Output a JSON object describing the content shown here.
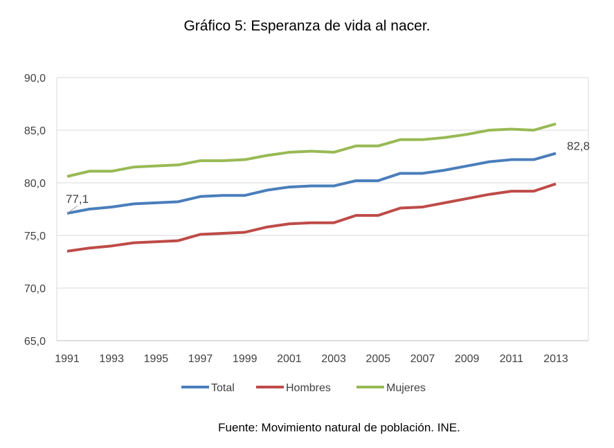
{
  "chart_data": {
    "type": "line",
    "title": "Gráfico 5: Esperanza de vida al nacer.",
    "source": "Fuente: Movimiento natural de población. INE.",
    "x": [
      1991,
      1992,
      1993,
      1994,
      1995,
      1996,
      1997,
      1998,
      1999,
      2000,
      2001,
      2002,
      2003,
      2004,
      2005,
      2006,
      2007,
      2008,
      2009,
      2010,
      2011,
      2012,
      2013
    ],
    "xticks": [
      "1991",
      "1993",
      "1995",
      "1997",
      "1999",
      "2001",
      "2003",
      "2005",
      "2007",
      "2009",
      "2011",
      "2013"
    ],
    "yticks": [
      "65,0",
      "70,0",
      "75,0",
      "80,0",
      "85,0",
      "90,0"
    ],
    "ylim": [
      65,
      90
    ],
    "grid": true,
    "legend": "bottom",
    "series": [
      {
        "name": "Total",
        "color": "#4a7ebb",
        "values": [
          77.1,
          77.5,
          77.7,
          78.0,
          78.1,
          78.2,
          78.7,
          78.8,
          78.8,
          79.3,
          79.6,
          79.7,
          79.7,
          80.2,
          80.2,
          80.9,
          80.9,
          81.2,
          81.6,
          82.0,
          82.2,
          82.2,
          82.8
        ]
      },
      {
        "name": "Hombres",
        "color": "#be4b48",
        "values": [
          73.5,
          73.8,
          74.0,
          74.3,
          74.4,
          74.5,
          75.1,
          75.2,
          75.3,
          75.8,
          76.1,
          76.2,
          76.2,
          76.9,
          76.9,
          77.6,
          77.7,
          78.1,
          78.5,
          78.9,
          79.2,
          79.2,
          79.9
        ]
      },
      {
        "name": "Mujeres",
        "color": "#98b954",
        "values": [
          80.6,
          81.1,
          81.1,
          81.5,
          81.6,
          81.7,
          82.1,
          82.1,
          82.2,
          82.6,
          82.9,
          83.0,
          82.9,
          83.5,
          83.5,
          84.1,
          84.1,
          84.3,
          84.6,
          85.0,
          85.1,
          85.0,
          85.6
        ]
      }
    ],
    "annotations": [
      "77,1",
      "82,8"
    ]
  }
}
